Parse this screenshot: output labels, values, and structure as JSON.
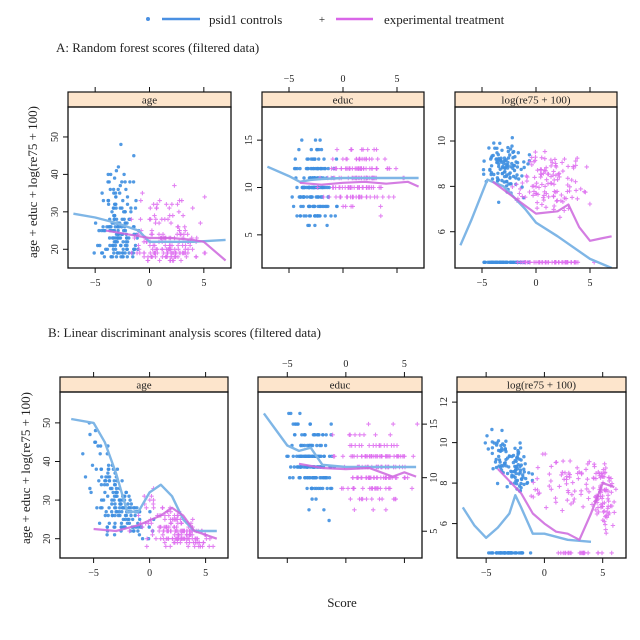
{
  "legend": {
    "items": [
      {
        "label": "psid1 controls",
        "color": "#4a90e2",
        "marker": "dot"
      },
      {
        "label": "experimental treatment",
        "color": "#d966e8",
        "marker": "plus"
      }
    ]
  },
  "xlabel": "Score",
  "ylabel": "age + educ + log(re75 + 100)",
  "colors": {
    "control": "#3f8fe0",
    "control_smooth": "#7fb6e6",
    "treatment": "#de6ef0",
    "treatment_smooth": "#cc66dd",
    "strip": "#fde5cc"
  },
  "chart_data": [
    {
      "type": "scatter",
      "title": "A: Random forest scores (filtered data)",
      "panels": [
        {
          "strip": "age",
          "xlim": [
            -7.5,
            7.5
          ],
          "xticks": [
            -5,
            0,
            5
          ],
          "ylim": [
            15,
            58
          ],
          "yticks": [
            20,
            30,
            40,
            50
          ],
          "smooth_control": [
            [
              -7,
              29.5
            ],
            [
              -5,
              28.5
            ],
            [
              -3,
              27
            ],
            [
              -1,
              25
            ],
            [
              0,
              22
            ],
            [
              2,
              22
            ],
            [
              4,
              22
            ],
            [
              7,
              22.5
            ]
          ],
          "smooth_treatment": [
            [
              -4,
              25
            ],
            [
              -2,
              24
            ],
            [
              0,
              23
            ],
            [
              2,
              23
            ],
            [
              4,
              22.5
            ],
            [
              5,
              22
            ],
            [
              7,
              17
            ]
          ]
        },
        {
          "strip": "educ",
          "xlim": [
            -7.5,
            7.5
          ],
          "xticks": [
            -5,
            0,
            5
          ],
          "ylim": [
            1.5,
            18.5
          ],
          "yticks": [
            5,
            10,
            15
          ],
          "smooth_control": [
            [
              -7,
              12.2
            ],
            [
              -5,
              11.2
            ],
            [
              -4,
              10.6
            ],
            [
              -3,
              10.8
            ],
            [
              -2,
              10.9
            ],
            [
              0,
              11
            ],
            [
              3,
              11
            ],
            [
              7,
              11
            ]
          ],
          "smooth_treatment": [
            [
              -4,
              10.5
            ],
            [
              -2,
              10.3
            ],
            [
              0,
              10.5
            ],
            [
              2,
              10.6
            ],
            [
              4,
              10.4
            ],
            [
              6,
              10.6
            ],
            [
              7,
              10.1
            ]
          ]
        },
        {
          "strip": "log(re75 + 100)",
          "xlim": [
            -7.5,
            7.5
          ],
          "xticks": [
            -5,
            0,
            5
          ],
          "ylim": [
            4.4,
            11.5
          ],
          "yticks": [
            6,
            8,
            10
          ],
          "smooth_control": [
            [
              -7,
              5.4
            ],
            [
              -6,
              6.5
            ],
            [
              -4.5,
              8.3
            ],
            [
              -3,
              8
            ],
            [
              -1,
              7
            ],
            [
              0,
              6.4
            ],
            [
              2,
              5.8
            ],
            [
              5,
              4.8
            ],
            [
              7,
              4.4
            ]
          ],
          "smooth_treatment": [
            [
              -4,
              8.2
            ],
            [
              -2,
              7.5
            ],
            [
              0,
              6.8
            ],
            [
              2,
              6.9
            ],
            [
              3,
              7.2
            ],
            [
              4,
              6.2
            ],
            [
              5,
              5.6
            ],
            [
              6,
              5.7
            ],
            [
              7,
              5.8
            ]
          ]
        }
      ]
    },
    {
      "type": "scatter",
      "title": "B: Linear discriminant analysis scores (filtered data)",
      "panels": [
        {
          "strip": "age",
          "xlim": [
            -8,
            7
          ],
          "xticks": [
            -5,
            0,
            5
          ],
          "ylim": [
            15,
            58
          ],
          "yticks": [
            20,
            30,
            40,
            50
          ],
          "smooth_control": [
            [
              -7,
              51
            ],
            [
              -5,
              50
            ],
            [
              -4,
              45
            ],
            [
              -3,
              37
            ],
            [
              -2,
              27
            ],
            [
              -1,
              27
            ],
            [
              0,
              32
            ],
            [
              1,
              34
            ],
            [
              2,
              31
            ],
            [
              3,
              25
            ],
            [
              4,
              22
            ],
            [
              6,
              22
            ]
          ],
          "smooth_treatment": [
            [
              -5,
              22.5
            ],
            [
              -3,
              22
            ],
            [
              -1,
              23.5
            ],
            [
              1,
              26
            ],
            [
              2,
              28
            ],
            [
              3,
              26
            ],
            [
              4,
              22
            ],
            [
              5,
              21
            ],
            [
              6,
              20
            ]
          ]
        },
        {
          "strip": "educ",
          "xlim": [
            -7.5,
            6.5
          ],
          "xticks": [
            -5,
            0,
            5
          ],
          "ylim": [
            2.5,
            18
          ],
          "yticks": [
            5,
            10,
            15
          ],
          "smooth_control": [
            [
              -7,
              16
            ],
            [
              -6,
              14.5
            ],
            [
              -5,
              13
            ],
            [
              -4,
              12.5
            ],
            [
              -3,
              12.8
            ],
            [
              -2,
              11.2
            ],
            [
              0,
              11
            ],
            [
              6,
              11
            ]
          ],
          "smooth_treatment": [
            [
              -4,
              11.3
            ],
            [
              -2,
              10.9
            ],
            [
              0,
              10.8
            ],
            [
              2,
              10.9
            ],
            [
              3,
              10.5
            ],
            [
              4,
              10.1
            ],
            [
              5,
              10.5
            ],
            [
              6,
              10.1
            ]
          ]
        },
        {
          "strip": "log(re75 + 100)",
          "xlim": [
            -7.5,
            7
          ],
          "xticks": [
            -5,
            0,
            5
          ],
          "ylim": [
            4.3,
            12.5
          ],
          "yticks": [
            6,
            8,
            10,
            12
          ],
          "smooth_control": [
            [
              -7,
              6.8
            ],
            [
              -6,
              5.9
            ],
            [
              -5,
              5.3
            ],
            [
              -4,
              5.8
            ],
            [
              -3,
              6.5
            ],
            [
              -2.5,
              7.4
            ],
            [
              -2,
              6.8
            ],
            [
              -1,
              5.5
            ],
            [
              0,
              5.5
            ],
            [
              2,
              5.2
            ],
            [
              4,
              5.1
            ]
          ],
          "smooth_treatment": [
            [
              -4,
              8.7
            ],
            [
              -2,
              7.5
            ],
            [
              -1,
              6.5
            ],
            [
              0,
              6
            ],
            [
              1,
              5.6
            ],
            [
              2,
              5.5
            ],
            [
              3,
              5.2
            ],
            [
              4,
              6.5
            ],
            [
              5,
              8
            ],
            [
              6,
              7.8
            ]
          ]
        }
      ]
    }
  ]
}
